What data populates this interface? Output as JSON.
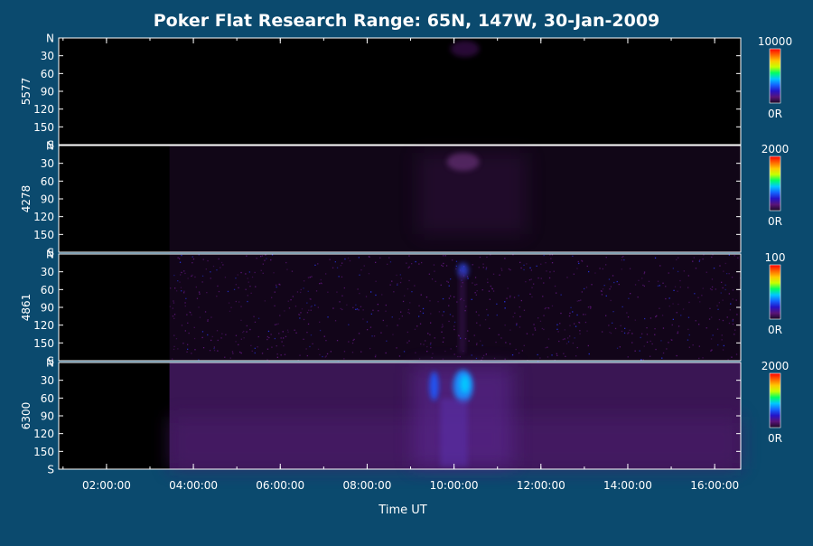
{
  "chart_data": {
    "type": "heatmap",
    "title": "Poker Flat Research Range: 65N, 147W, 30-Jan-2009",
    "xlabel": "Time UT",
    "x_ticks": [
      "02:00:00",
      "04:00:00",
      "06:00:00",
      "08:00:00",
      "10:00:00",
      "12:00:00",
      "14:00:00",
      "16:00:00"
    ],
    "x_tick_hours": [
      2,
      4,
      6,
      8,
      10,
      12,
      14,
      16
    ],
    "xlim_hours": [
      0.9,
      16.6
    ],
    "y_ticks": [
      "N",
      "30",
      "60",
      "90",
      "120",
      "150",
      "S"
    ],
    "y_tick_values": [
      0,
      30,
      60,
      90,
      120,
      150,
      180
    ],
    "ylim": [
      0,
      180
    ],
    "data_start_hour": 3.45,
    "panels": [
      {
        "name": "5577",
        "colorbar_max": "10000",
        "colorbar_min": "0R"
      },
      {
        "name": "4278",
        "colorbar_max": "2000",
        "colorbar_min": "0R"
      },
      {
        "name": "4861",
        "colorbar_max": "100",
        "colorbar_min": "0R"
      },
      {
        "name": "6300",
        "colorbar_max": "2000",
        "colorbar_min": "0R"
      }
    ],
    "colors": {
      "background": "#0b4a6e",
      "plot_background": "#000000",
      "colormap": [
        "#1a0a24",
        "#5a1478",
        "#2414c8",
        "#1464ff",
        "#00c8ff",
        "#00ff64",
        "#c8ff00",
        "#ffc800",
        "#ff6400",
        "#ff0000"
      ]
    }
  }
}
